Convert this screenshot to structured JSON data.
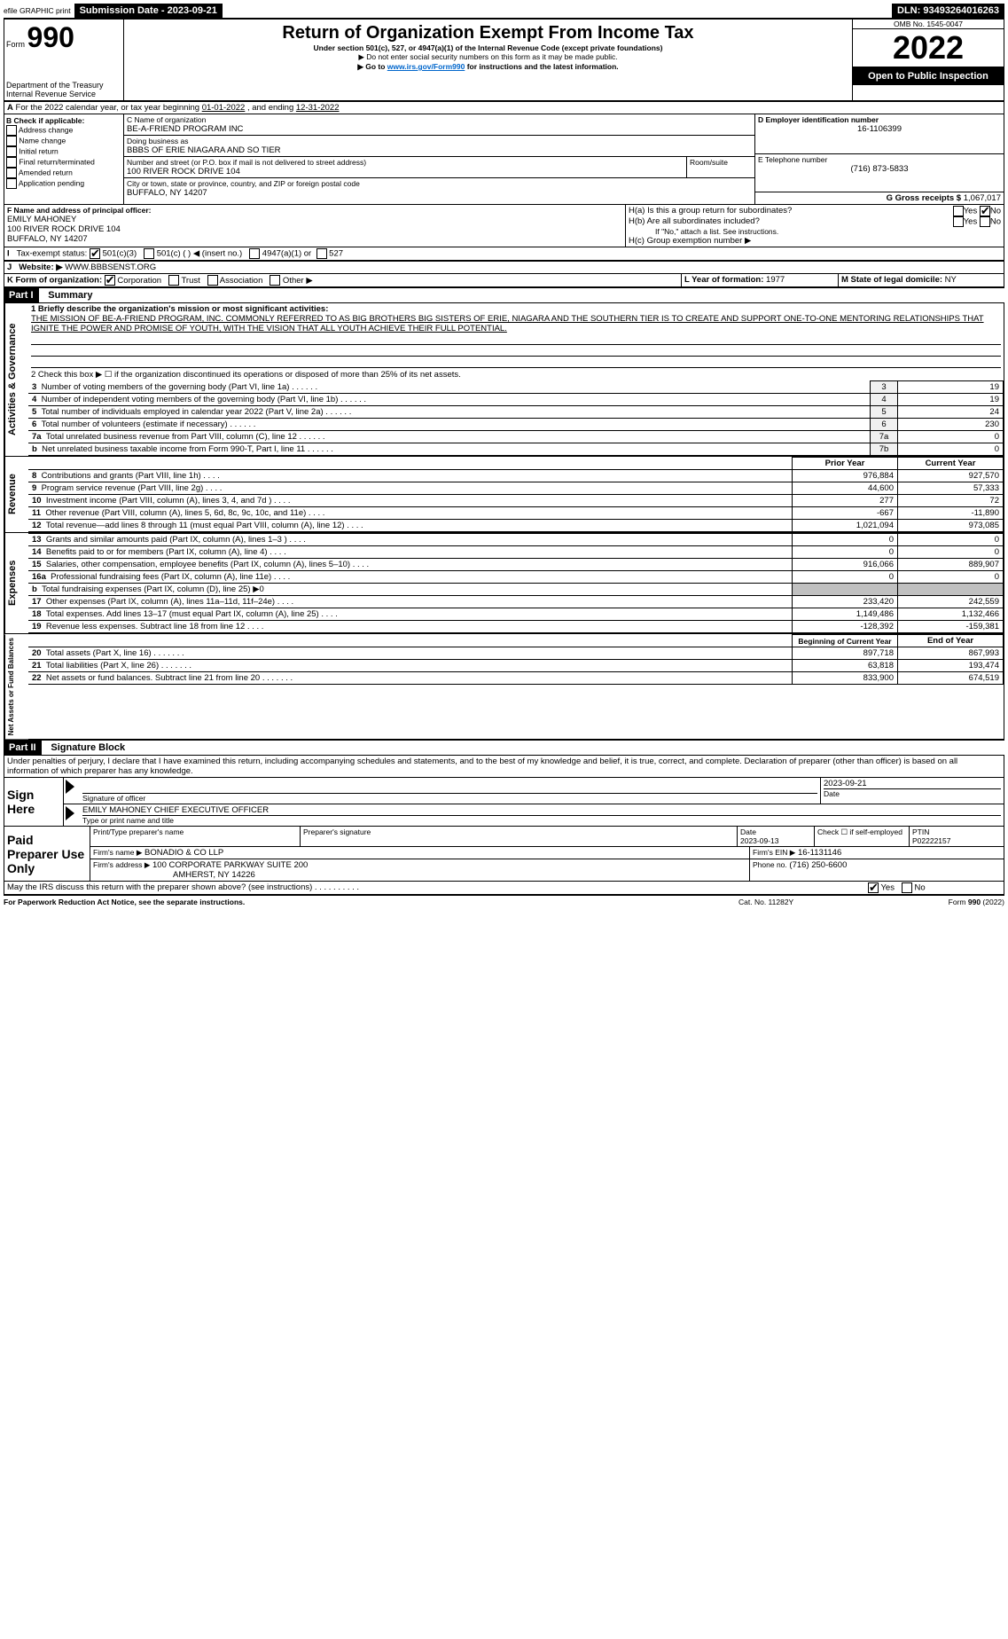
{
  "efile": {
    "label": "efile GRAPHIC print",
    "submission_label": "Submission Date - 2023-09-21",
    "dln_label": "DLN: 93493264016263"
  },
  "header": {
    "form_label": "Form",
    "form_number": "990",
    "dept": "Department of the Treasury",
    "irs": "Internal Revenue Service",
    "title": "Return of Organization Exempt From Income Tax",
    "subtitle": "Under section 501(c), 527, or 4947(a)(1) of the Internal Revenue Code (except private foundations)",
    "note1": "▶ Do not enter social security numbers on this form as it may be made public.",
    "note2_pre": "▶ Go to ",
    "note2_link": "www.irs.gov/Form990",
    "note2_post": " for instructions and the latest information.",
    "omb": "OMB No. 1545-0047",
    "year": "2022",
    "open": "Open to Public Inspection"
  },
  "periodA": {
    "text_pre": "For the 2022 calendar year, or tax year beginning ",
    "begin": "01-01-2022",
    "mid": " , and ending ",
    "end": "12-31-2022"
  },
  "boxB": {
    "label": "B Check if applicable:",
    "items": [
      "Address change",
      "Name change",
      "Initial return",
      "Final return/terminated",
      "Amended return",
      "Application pending"
    ]
  },
  "boxC": {
    "label": "C Name of organization",
    "name": "BE-A-FRIEND PROGRAM INC",
    "dba_label": "Doing business as",
    "dba": "BBBS OF ERIE NIAGARA AND SO TIER",
    "street_label": "Number and street (or P.O. box if mail is not delivered to street address)",
    "room_label": "Room/suite",
    "street": "100 RIVER ROCK DRIVE 104",
    "city_label": "City or town, state or province, country, and ZIP or foreign postal code",
    "city": "BUFFALO, NY  14207"
  },
  "boxD": {
    "label": "D Employer identification number",
    "value": "16-1106399"
  },
  "boxE": {
    "label": "E Telephone number",
    "value": "(716) 873-5833"
  },
  "boxG": {
    "label": "G Gross receipts $",
    "value": "1,067,017"
  },
  "boxF": {
    "label": "F Name and address of principal officer:",
    "name": "EMILY MAHONEY",
    "street": "100 RIVER ROCK DRIVE 104",
    "city": "BUFFALO, NY  14207"
  },
  "boxH": {
    "a_label": "H(a)  Is this a group return for subordinates?",
    "b_label": "H(b)  Are all subordinates included?",
    "b_note": "If \"No,\" attach a list. See instructions.",
    "c_label": "H(c)  Group exemption number ▶",
    "yes": "Yes",
    "no": "No"
  },
  "boxI": {
    "label": "Tax-exempt status:",
    "opt1": "501(c)(3)",
    "opt2": "501(c) (   ) ◀ (insert no.)",
    "opt3": "4947(a)(1) or",
    "opt4": "527"
  },
  "boxJ": {
    "label": "J",
    "text": "Website: ▶",
    "value": "WWW.BBBSENST.ORG"
  },
  "boxK": {
    "label": "K Form of organization:",
    "opts": [
      "Corporation",
      "Trust",
      "Association",
      "Other ▶"
    ]
  },
  "boxL": {
    "label": "L Year of formation:",
    "value": "1977"
  },
  "boxM": {
    "label": "M State of legal domicile:",
    "value": "NY"
  },
  "part1": {
    "header": "Part I",
    "title": "Summary",
    "line1_label": "1  Briefly describe the organization's mission or most significant activities:",
    "mission": "THE MISSION OF BE-A-FRIEND PROGRAM, INC. COMMONLY REFERRED TO AS BIG BROTHERS BIG SISTERS OF ERIE, NIAGARA AND THE SOUTHERN TIER IS TO CREATE AND SUPPORT ONE-TO-ONE MENTORING RELATIONSHIPS THAT IGNITE THE POWER AND PROMISE OF YOUTH, WITH THE VISION THAT ALL YOUTH ACHIEVE THEIR FULL POTENTIAL.",
    "line2": "2   Check this box ▶ ☐ if the organization discontinued its operations or disposed of more than 25% of its net assets.",
    "governance_rows": [
      {
        "n": "3",
        "label": "Number of voting members of the governing body (Part VI, line 1a)",
        "box": "3",
        "val": "19"
      },
      {
        "n": "4",
        "label": "Number of independent voting members of the governing body (Part VI, line 1b)",
        "box": "4",
        "val": "19"
      },
      {
        "n": "5",
        "label": "Total number of individuals employed in calendar year 2022 (Part V, line 2a)",
        "box": "5",
        "val": "24"
      },
      {
        "n": "6",
        "label": "Total number of volunteers (estimate if necessary)",
        "box": "6",
        "val": "230"
      },
      {
        "n": "7a",
        "label": "Total unrelated business revenue from Part VIII, column (C), line 12",
        "box": "7a",
        "val": "0"
      },
      {
        "n": "b",
        "label": "Net unrelated business taxable income from Form 990-T, Part I, line 11",
        "box": "7b",
        "val": "0"
      }
    ],
    "col_headers": {
      "prior": "Prior Year",
      "current": "Current Year"
    },
    "revenue_rows": [
      {
        "n": "8",
        "label": "Contributions and grants (Part VIII, line 1h)",
        "prior": "976,884",
        "current": "927,570"
      },
      {
        "n": "9",
        "label": "Program service revenue (Part VIII, line 2g)",
        "prior": "44,600",
        "current": "57,333"
      },
      {
        "n": "10",
        "label": "Investment income (Part VIII, column (A), lines 3, 4, and 7d )",
        "prior": "277",
        "current": "72"
      },
      {
        "n": "11",
        "label": "Other revenue (Part VIII, column (A), lines 5, 6d, 8c, 9c, 10c, and 11e)",
        "prior": "-667",
        "current": "-11,890"
      },
      {
        "n": "12",
        "label": "Total revenue—add lines 8 through 11 (must equal Part VIII, column (A), line 12)",
        "prior": "1,021,094",
        "current": "973,085"
      }
    ],
    "expense_rows": [
      {
        "n": "13",
        "label": "Grants and similar amounts paid (Part IX, column (A), lines 1–3 )",
        "prior": "0",
        "current": "0"
      },
      {
        "n": "14",
        "label": "Benefits paid to or for members (Part IX, column (A), line 4)",
        "prior": "0",
        "current": "0"
      },
      {
        "n": "15",
        "label": "Salaries, other compensation, employee benefits (Part IX, column (A), lines 5–10)",
        "prior": "916,066",
        "current": "889,907"
      },
      {
        "n": "16a",
        "label": "Professional fundraising fees (Part IX, column (A), line 11e)",
        "prior": "0",
        "current": "0"
      },
      {
        "n": "b",
        "label": "Total fundraising expenses (Part IX, column (D), line 25) ▶0",
        "prior": "",
        "current": "",
        "shaded": true
      },
      {
        "n": "17",
        "label": "Other expenses (Part IX, column (A), lines 11a–11d, 11f–24e)",
        "prior": "233,420",
        "current": "242,559"
      },
      {
        "n": "18",
        "label": "Total expenses. Add lines 13–17 (must equal Part IX, column (A), line 25)",
        "prior": "1,149,486",
        "current": "1,132,466"
      },
      {
        "n": "19",
        "label": "Revenue less expenses. Subtract line 18 from line 12",
        "prior": "-128,392",
        "current": "-159,381"
      }
    ],
    "net_headers": {
      "begin": "Beginning of Current Year",
      "end": "End of Year"
    },
    "net_rows": [
      {
        "n": "20",
        "label": "Total assets (Part X, line 16)",
        "prior": "897,718",
        "current": "867,993"
      },
      {
        "n": "21",
        "label": "Total liabilities (Part X, line 26)",
        "prior": "63,818",
        "current": "193,474"
      },
      {
        "n": "22",
        "label": "Net assets or fund balances. Subtract line 21 from line 20",
        "prior": "833,900",
        "current": "674,519"
      }
    ],
    "vert_labels": {
      "gov": "Activities & Governance",
      "rev": "Revenue",
      "exp": "Expenses",
      "net": "Net Assets or Fund Balances"
    }
  },
  "part2": {
    "header": "Part II",
    "title": "Signature Block",
    "declaration": "Under penalties of perjury, I declare that I have examined this return, including accompanying schedules and statements, and to the best of my knowledge and belief, it is true, correct, and complete. Declaration of preparer (other than officer) is based on all information of which preparer has any knowledge.",
    "sign_here": "Sign Here",
    "sig_officer": "Signature of officer",
    "date_label": "Date",
    "sig_date": "2023-09-21",
    "officer_name": "EMILY MAHONEY CHIEF EXECUTIVE OFFICER",
    "type_name": "Type or print name and title",
    "paid": "Paid Preparer Use Only",
    "prep_name_label": "Print/Type preparer's name",
    "prep_sig_label": "Preparer's signature",
    "prep_date": "2023-09-13",
    "self_emp": "Check ☐ if self-employed",
    "ptin_label": "PTIN",
    "ptin": "P02222157",
    "firm_name_label": "Firm's name    ▶",
    "firm_name": "BONADIO & CO LLP",
    "firm_ein_label": "Firm's EIN ▶",
    "firm_ein": "16-1131146",
    "firm_addr_label": "Firm's address ▶",
    "firm_addr1": "100 CORPORATE PARKWAY SUITE 200",
    "firm_addr2": "AMHERST, NY  14226",
    "phone_label": "Phone no.",
    "phone": "(716) 250-6600",
    "discuss": "May the IRS discuss this return with the preparer shown above? (see instructions)",
    "yes": "Yes",
    "no": "No"
  },
  "footer": {
    "left": "For Paperwork Reduction Act Notice, see the separate instructions.",
    "mid": "Cat. No. 11282Y",
    "right": "Form 990 (2022)"
  }
}
